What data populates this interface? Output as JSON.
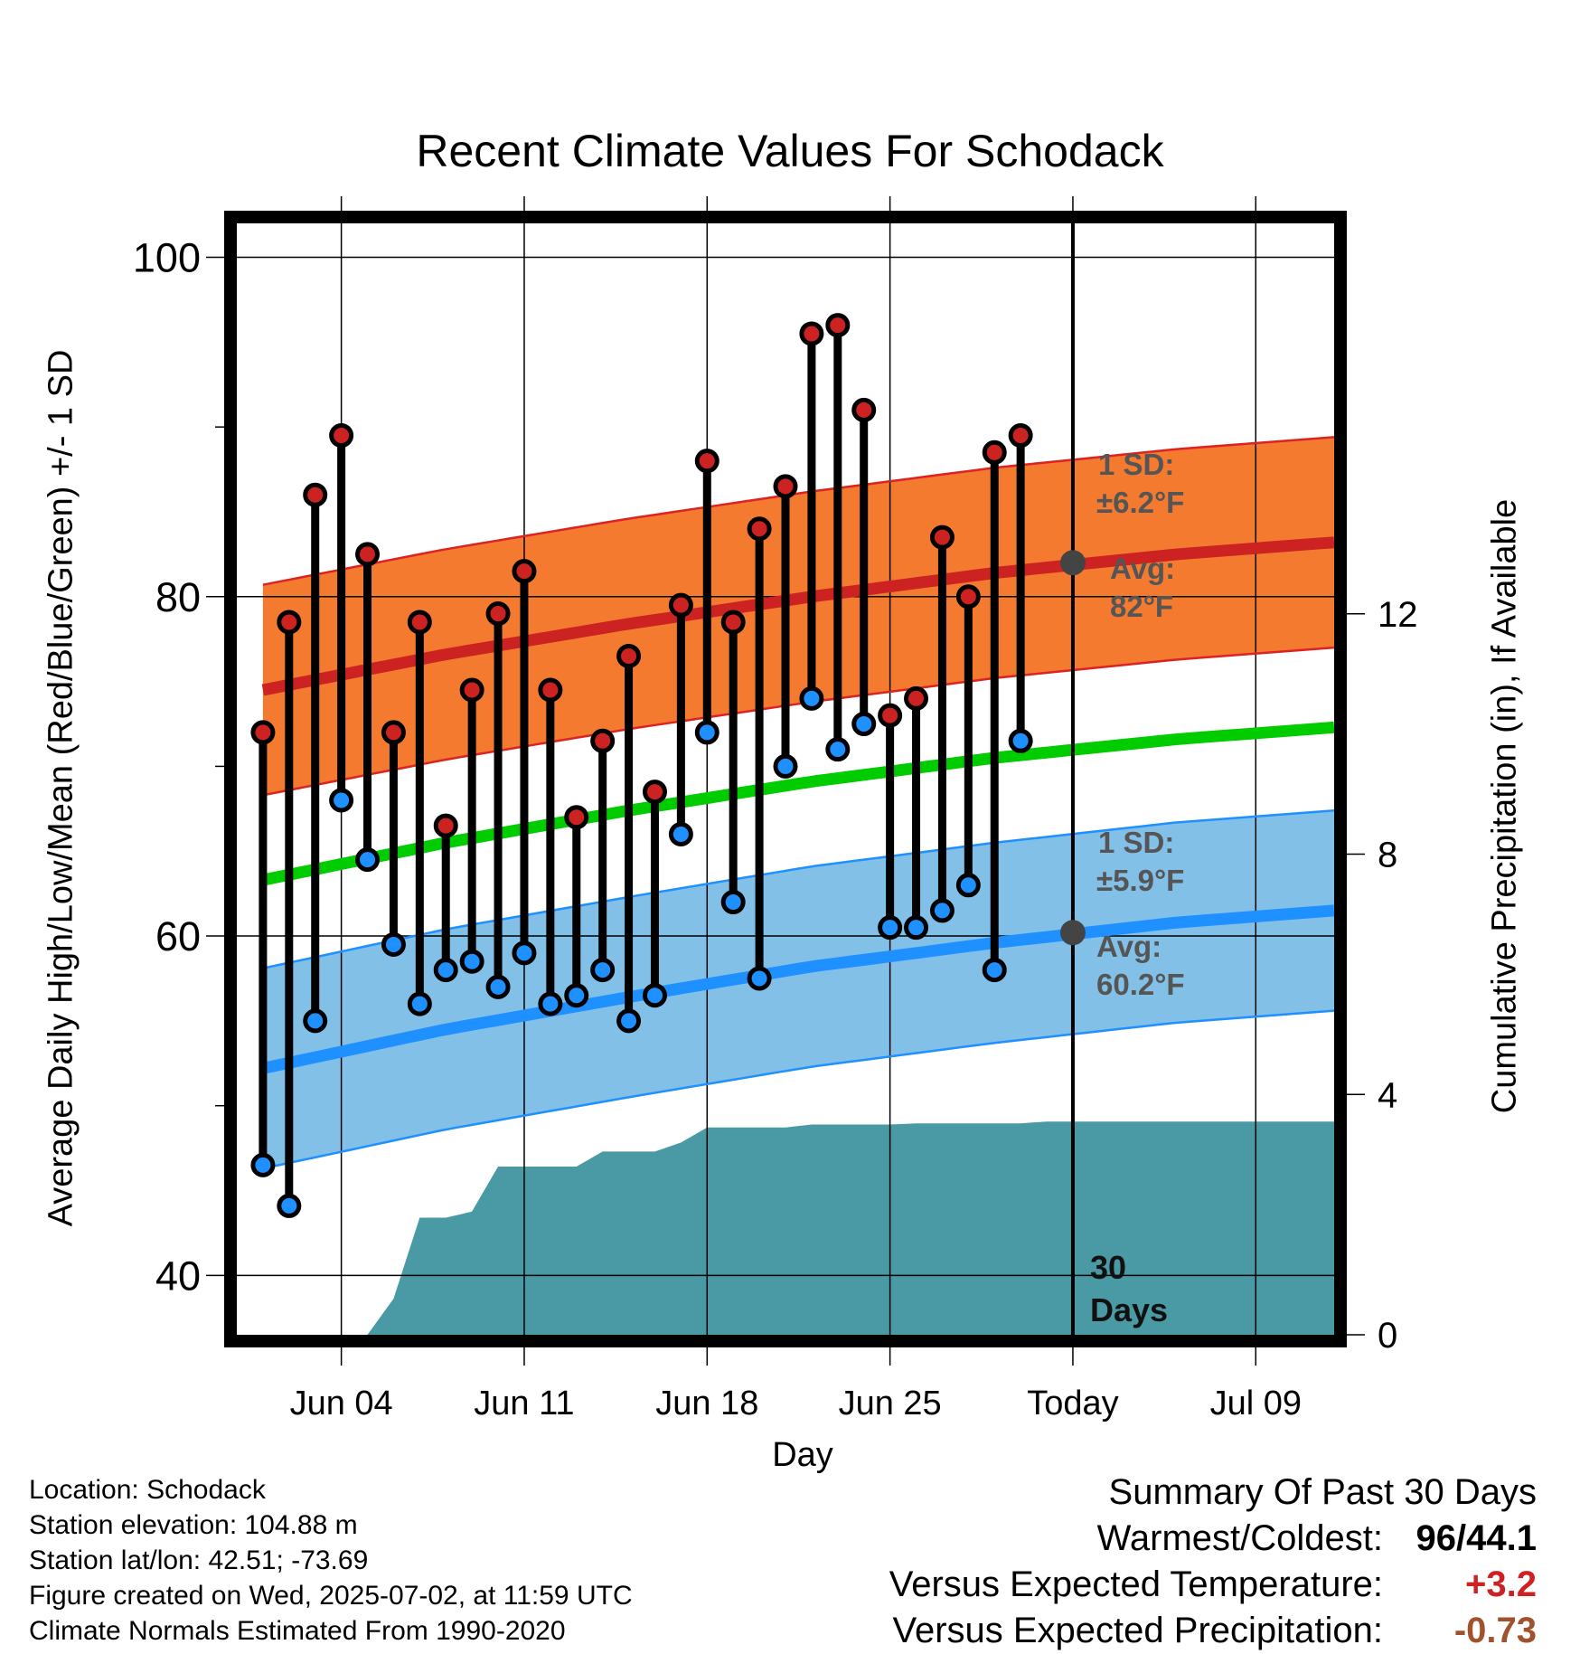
{
  "page": {
    "title": "Recent Climate Values For Schodack",
    "y_left_title": "Average Daily High/Low/Mean (Red/Blue/Green) +/- 1 SD",
    "y_right_title": "Cumulative Precipitation (in), If Available",
    "x_title": "Day"
  },
  "annotations": {
    "high_sd_line1": "1 SD:",
    "high_sd_line2": "±6.2°F",
    "high_avg_line1": "Avg:",
    "high_avg_line2": "82°F",
    "low_sd_line1": "1 SD:",
    "low_sd_line2": "±5.9°F",
    "low_avg_line1": "Avg:",
    "low_avg_line2": "60.2°F",
    "window_line1": "30",
    "window_line2": "Days"
  },
  "footer": {
    "location": "Location: Schodack",
    "elevation": "Station elevation: 104.88 m",
    "latlon": "Station lat/lon: 42.51; -73.69",
    "created": "Figure created on Wed, 2025-07-02, at 11:59 UTC",
    "normals": "Climate Normals Estimated From 1990-2020"
  },
  "summary": {
    "heading": "Summary Of Past 30 Days",
    "warm_cold_label": "Warmest/Coldest:",
    "warm_cold_value": "96/44.1",
    "temp_label": "Versus Expected Temperature:",
    "temp_value": "+3.2",
    "temp_color": "#cc2222",
    "precip_label": "Versus Expected Precipitation:",
    "precip_value": "-0.73",
    "precip_color": "#a0522d"
  },
  "chart_data": {
    "type": "line",
    "title": "Recent Climate Values For Schodack",
    "xlabel": "Day",
    "ylabel": "Average Daily High/Low/Mean (Red/Blue/Green) +/- 1 SD",
    "ylabel_right": "Cumulative Precipitation (in), If Available",
    "ylim": [
      36.5,
      102
    ],
    "ylim_right": [
      0,
      18.5
    ],
    "xlim": [
      "2025-05-31",
      "2025-07-12"
    ],
    "x_ticks": [
      "Jun 04",
      "Jun 11",
      "Jun 18",
      "Jun 25",
      "Today",
      "Jul 09"
    ],
    "x_tick_dates": [
      "2025-06-04",
      "2025-06-11",
      "2025-06-18",
      "2025-06-25",
      "2025-07-02",
      "2025-07-09"
    ],
    "y_ticks": [
      40,
      60,
      80,
      100
    ],
    "y_ticks_right": [
      0,
      4,
      8,
      12
    ],
    "grid": true,
    "colors": {
      "high_band": "#f47a30",
      "high_line": "#cc2222",
      "low_band": "#82c0e8",
      "low_line": "#1e90ff",
      "mean_line": "#00cc00",
      "precip_fill": "#4a9aa5",
      "high_marker": "#cc2222",
      "low_marker": "#1e90ff",
      "avg_marker": "#444444",
      "annotation_text": "#555555"
    },
    "today": "2025-07-02",
    "daily": {
      "dates": [
        "2025-06-01",
        "2025-06-02",
        "2025-06-03",
        "2025-06-04",
        "2025-06-05",
        "2025-06-06",
        "2025-06-07",
        "2025-06-08",
        "2025-06-09",
        "2025-06-10",
        "2025-06-11",
        "2025-06-12",
        "2025-06-13",
        "2025-06-14",
        "2025-06-15",
        "2025-06-16",
        "2025-06-17",
        "2025-06-18",
        "2025-06-19",
        "2025-06-20",
        "2025-06-21",
        "2025-06-22",
        "2025-06-23",
        "2025-06-24",
        "2025-06-25",
        "2025-06-26",
        "2025-06-27",
        "2025-06-28",
        "2025-06-29",
        "2025-06-30",
        "2025-07-01"
      ],
      "high": [
        72,
        78.5,
        86,
        89.5,
        82.5,
        72,
        78.5,
        66.5,
        74.5,
        79,
        81.5,
        74.5,
        67,
        71.5,
        76.5,
        68.5,
        79.5,
        88,
        78.5,
        84,
        86.5,
        95.5,
        96,
        91,
        73,
        74,
        83.5,
        80,
        88.5,
        89.5,
        null
      ],
      "low": [
        46.5,
        44.1,
        55,
        68,
        64.5,
        59.5,
        56,
        58,
        58.5,
        57,
        59,
        56,
        56.5,
        58,
        55,
        56.5,
        66,
        72,
        62,
        57.5,
        70,
        74,
        71,
        72.5,
        60.5,
        60.5,
        61.5,
        63,
        58,
        71.5,
        null
      ]
    },
    "normals": {
      "dates": [
        "2025-06-01",
        "2025-06-08",
        "2025-06-15",
        "2025-06-22",
        "2025-06-29",
        "2025-07-06",
        "2025-07-12"
      ],
      "high_avg": [
        74.5,
        76.6,
        78.4,
        80.0,
        81.4,
        82.5,
        83.2
      ],
      "high_sd": 6.2,
      "low_avg": [
        52.2,
        54.5,
        56.4,
        58.2,
        59.6,
        60.8,
        61.5
      ],
      "low_sd": 5.9,
      "mean_avg": [
        63.3,
        65.5,
        67.4,
        69.1,
        70.5,
        71.6,
        72.3
      ]
    },
    "avg_markers": [
      {
        "date": "2025-07-02",
        "value": 82,
        "series": "high"
      },
      {
        "date": "2025-07-02",
        "value": 60.2,
        "series": "low"
      }
    ],
    "precipitation": {
      "dates": [
        "2025-06-01",
        "2025-06-02",
        "2025-06-03",
        "2025-06-04",
        "2025-06-05",
        "2025-06-06",
        "2025-06-07",
        "2025-06-08",
        "2025-06-09",
        "2025-06-10",
        "2025-06-11",
        "2025-06-12",
        "2025-06-13",
        "2025-06-14",
        "2025-06-15",
        "2025-06-16",
        "2025-06-17",
        "2025-06-18",
        "2025-06-19",
        "2025-06-20",
        "2025-06-21",
        "2025-06-22",
        "2025-06-23",
        "2025-06-24",
        "2025-06-25",
        "2025-06-26",
        "2025-06-27",
        "2025-06-28",
        "2025-06-29",
        "2025-06-30",
        "2025-07-01",
        "2025-07-02",
        "2025-07-12"
      ],
      "cumulative_in": [
        0,
        0,
        0,
        0,
        0,
        0.6,
        1.95,
        1.95,
        2.05,
        2.8,
        2.8,
        2.8,
        2.8,
        3.05,
        3.05,
        3.05,
        3.2,
        3.45,
        3.45,
        3.45,
        3.45,
        3.5,
        3.5,
        3.5,
        3.5,
        3.52,
        3.52,
        3.52,
        3.52,
        3.52,
        3.55,
        3.55,
        3.55
      ]
    }
  }
}
